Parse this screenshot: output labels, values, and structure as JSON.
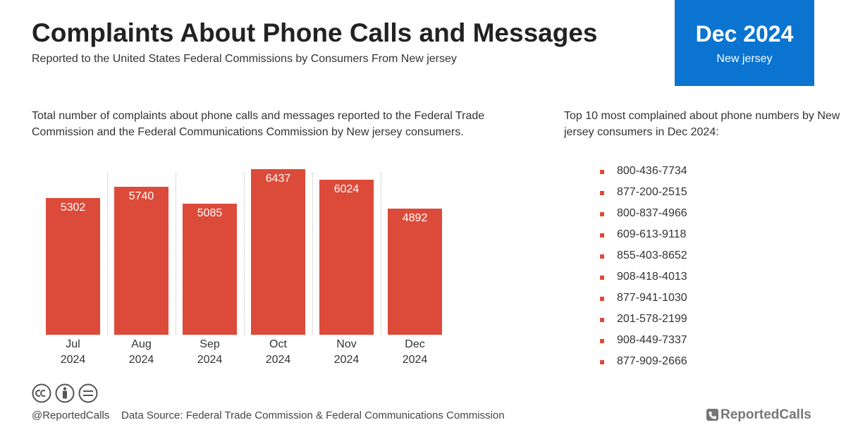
{
  "header": {
    "title": "Complaints About Phone Calls and Messages",
    "subtitle": "Reported to the United States Federal Commissions by Consumers From New jersey"
  },
  "badge": {
    "period": "Dec 2024",
    "region": "New jersey"
  },
  "chart_description": "Total number of complaints about phone calls and messages reported to the Federal Trade Commission and the Federal Communications Commission by New jersey consumers.",
  "chart_data": {
    "type": "bar",
    "categories": [
      "Jul 2024",
      "Aug 2024",
      "Sep 2024",
      "Oct 2024",
      "Nov 2024",
      "Dec 2024"
    ],
    "values": [
      5302,
      5740,
      5085,
      6437,
      6024,
      4892
    ],
    "color": "#dc4b3a"
  },
  "top_numbers": {
    "heading": "Top 10 most complained about phone numbers by New jersey consumers in Dec 2024:",
    "items": [
      "800-436-7734",
      "877-200-2515",
      "800-837-4966",
      "609-613-9118",
      "855-403-8652",
      "908-418-4013",
      "877-941-1030",
      "201-578-2199",
      "908-449-7337",
      "877-909-2666"
    ]
  },
  "footer": {
    "handle": "@ReportedCalls",
    "source": "Data Source: Federal Trade Commission & Federal Communications Commission",
    "brand": "ReportedCalls"
  }
}
